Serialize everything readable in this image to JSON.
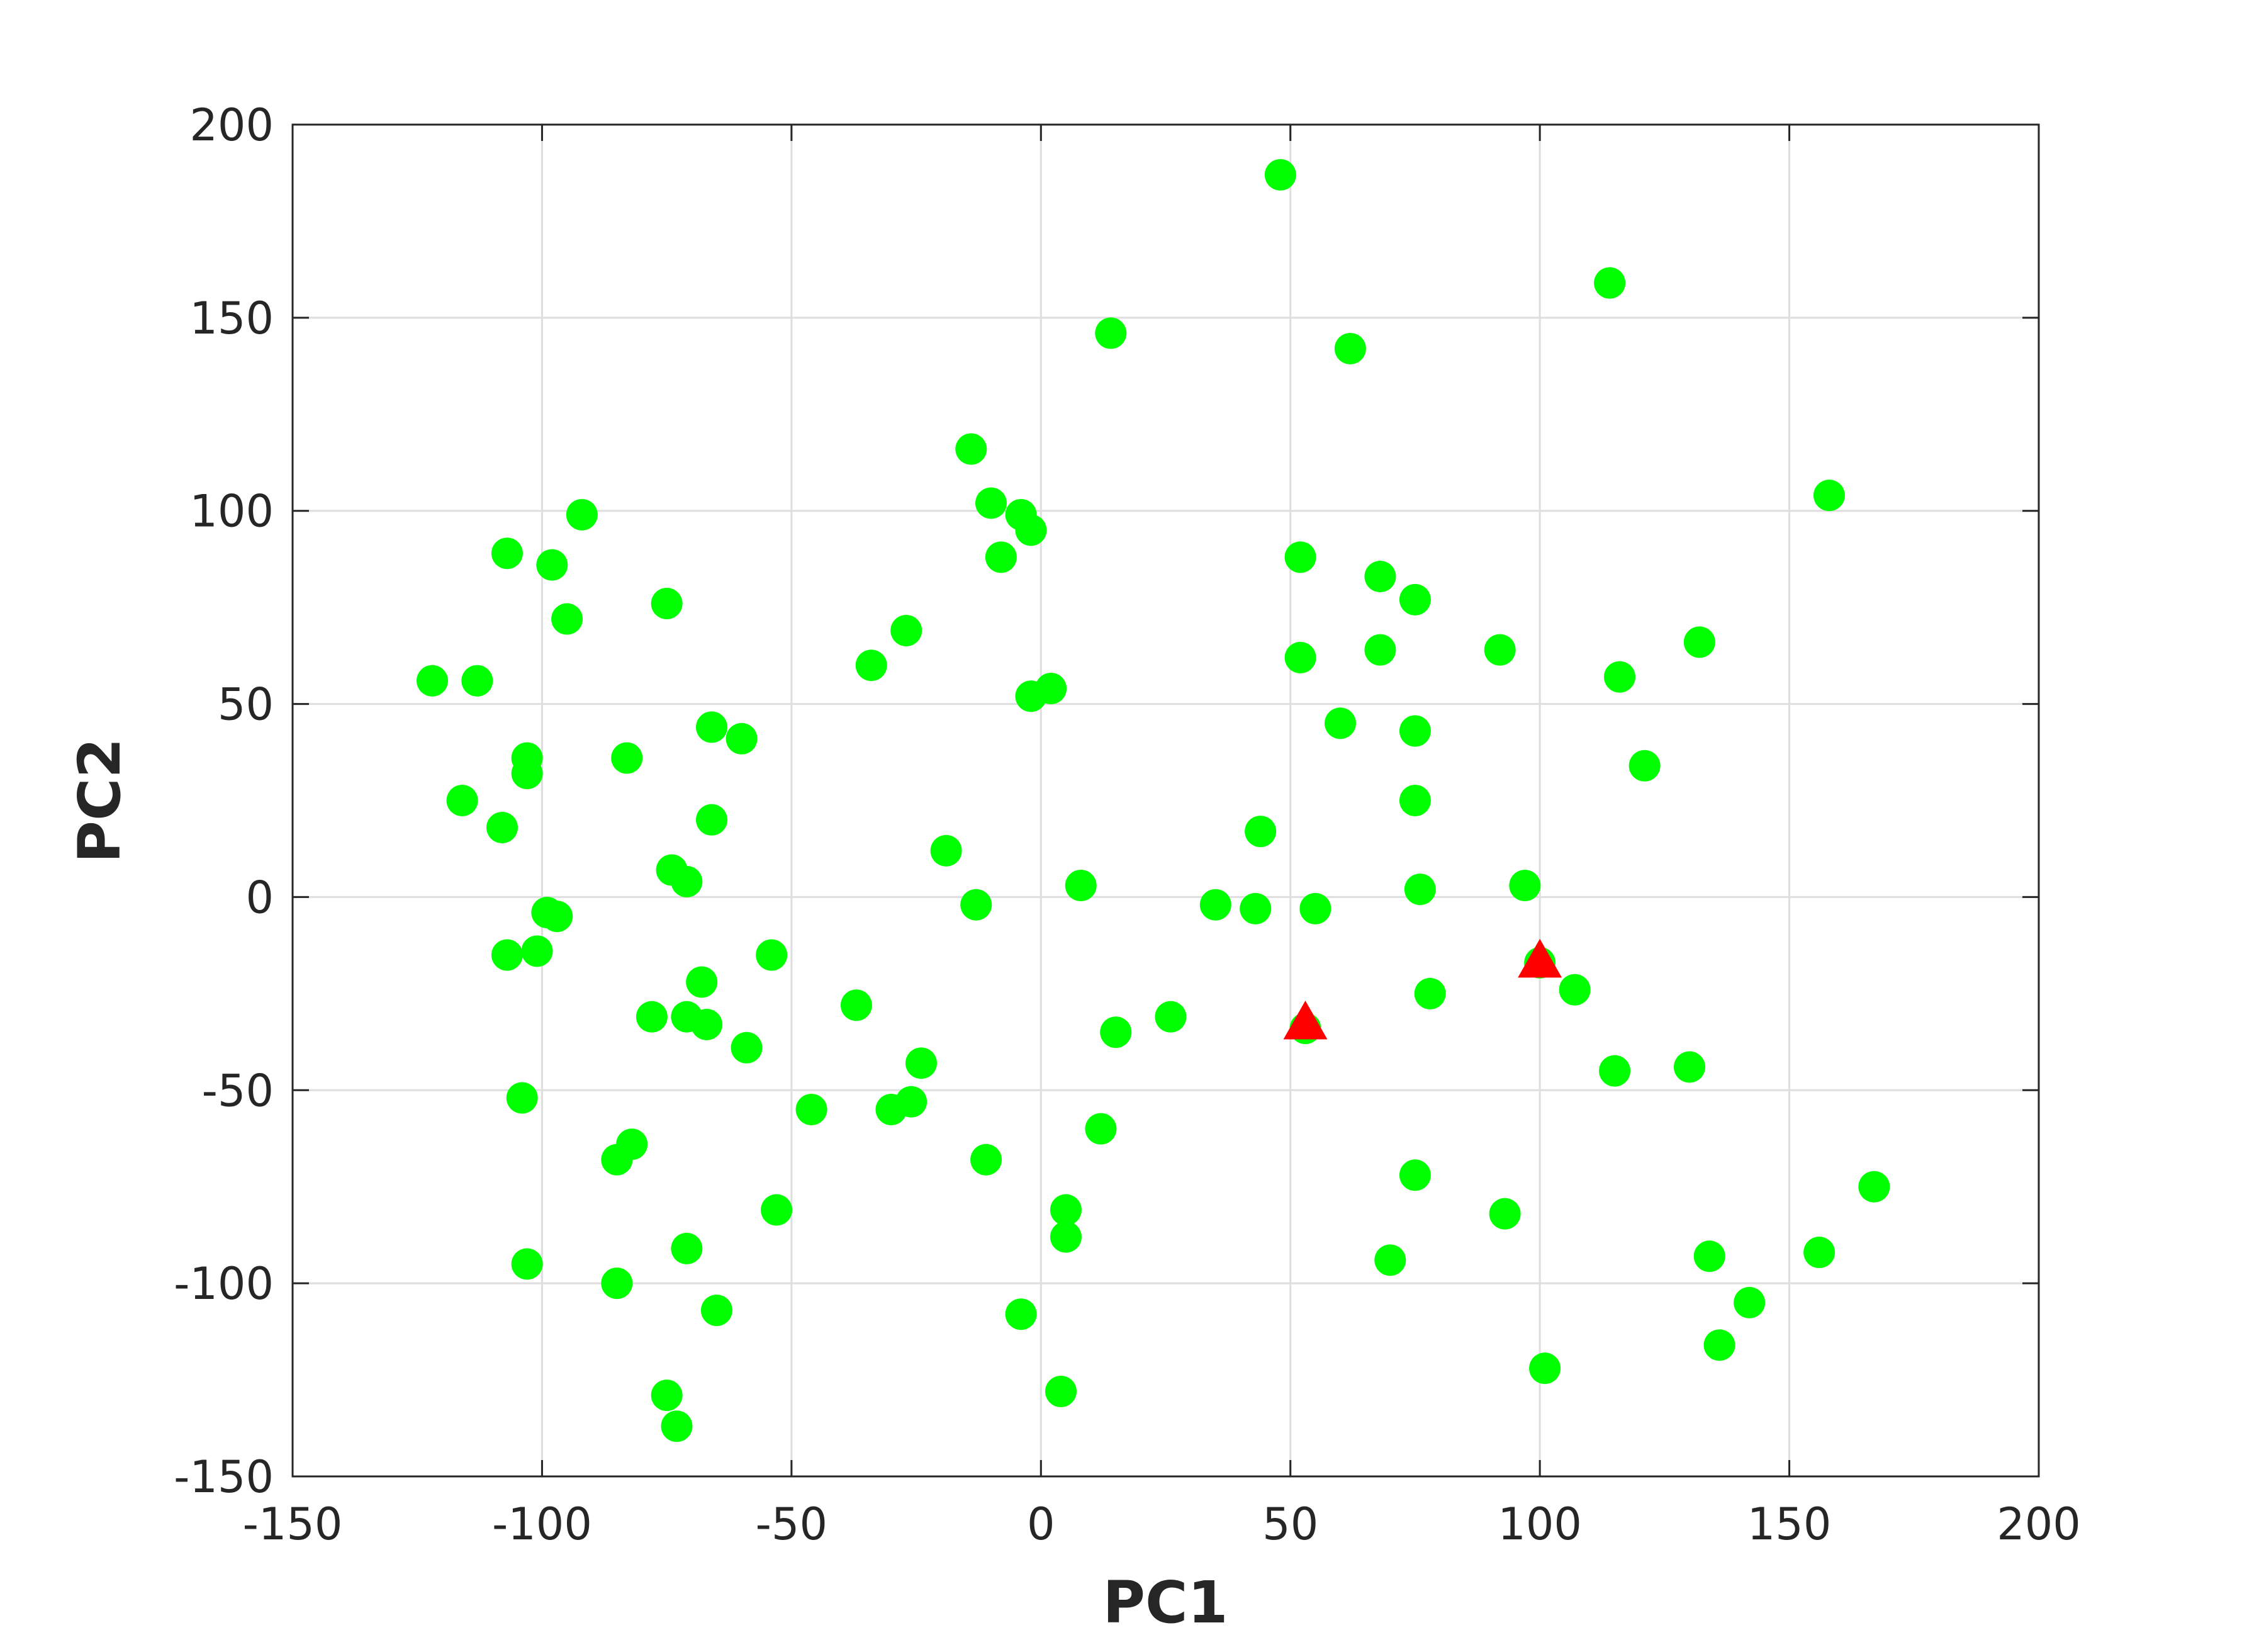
{
  "chart_data": {
    "type": "scatter",
    "title": "",
    "xlabel": "PC1",
    "ylabel": "PC2",
    "xlim": [
      -150,
      200
    ],
    "ylim": [
      -150,
      200
    ],
    "xticks": [
      -150,
      -100,
      -50,
      0,
      50,
      100,
      150,
      200
    ],
    "yticks": [
      -150,
      -100,
      -50,
      0,
      50,
      100,
      150,
      200
    ],
    "xtick_labels": [
      "-150",
      "-100",
      "-50",
      "0",
      "50",
      "100",
      "150",
      "200"
    ],
    "ytick_labels": [
      "-150",
      "-100",
      "-50",
      "0",
      "50",
      "100",
      "150",
      "200"
    ],
    "grid": true,
    "colors": {
      "circles": "#00ff00",
      "triangles": "#ff0000",
      "grid": "#dedede",
      "axes": "#262626"
    },
    "series": [
      {
        "marker": "circle",
        "color": "#00ff00",
        "points": [
          [
            48,
            187
          ],
          [
            114,
            159
          ],
          [
            14,
            146
          ],
          [
            62,
            142
          ],
          [
            158,
            104
          ],
          [
            -14,
            116
          ],
          [
            -10,
            102
          ],
          [
            -4,
            99
          ],
          [
            -2,
            95
          ],
          [
            -8,
            88
          ],
          [
            -107,
            89
          ],
          [
            -98,
            86
          ],
          [
            -92,
            99
          ],
          [
            -95,
            72
          ],
          [
            -75,
            76
          ],
          [
            52,
            88
          ],
          [
            68,
            83
          ],
          [
            75,
            77
          ],
          [
            132,
            66
          ],
          [
            92,
            64
          ],
          [
            68,
            64
          ],
          [
            52,
            62
          ],
          [
            116,
            57
          ],
          [
            -122,
            56
          ],
          [
            -113,
            56
          ],
          [
            -27,
            69
          ],
          [
            -34,
            60
          ],
          [
            -2,
            52
          ],
          [
            2,
            54
          ],
          [
            60,
            45
          ],
          [
            75,
            43
          ],
          [
            121,
            34
          ],
          [
            -66,
            44
          ],
          [
            -60,
            41
          ],
          [
            -83,
            36
          ],
          [
            -103,
            36
          ],
          [
            -103,
            32
          ],
          [
            -116,
            25
          ],
          [
            -108,
            18
          ],
          [
            -66,
            20
          ],
          [
            75,
            25
          ],
          [
            44,
            17
          ],
          [
            -19,
            12
          ],
          [
            -74,
            7
          ],
          [
            -71,
            4
          ],
          [
            8,
            3
          ],
          [
            76,
            2
          ],
          [
            97,
            3
          ],
          [
            -13,
            -2
          ],
          [
            35,
            -2
          ],
          [
            43,
            -3
          ],
          [
            55,
            -3
          ],
          [
            -99,
            -4
          ],
          [
            -97,
            -5
          ],
          [
            -107,
            -15
          ],
          [
            -101,
            -14
          ],
          [
            -54,
            -15
          ],
          [
            -68,
            -22
          ],
          [
            -78,
            -31
          ],
          [
            -71,
            -31
          ],
          [
            -67,
            -33
          ],
          [
            -59,
            -39
          ],
          [
            -37,
            -28
          ],
          [
            78,
            -25
          ],
          [
            100,
            -17
          ],
          [
            107,
            -24
          ],
          [
            53,
            -34
          ],
          [
            26,
            -31
          ],
          [
            15,
            -35
          ],
          [
            115,
            -45
          ],
          [
            130,
            -44
          ],
          [
            -24,
            -43
          ],
          [
            -26,
            -53
          ],
          [
            -30,
            -55
          ],
          [
            -46,
            -55
          ],
          [
            -104,
            -52
          ],
          [
            12,
            -60
          ],
          [
            -82,
            -64
          ],
          [
            -85,
            -68
          ],
          [
            -11,
            -68
          ],
          [
            75,
            -72
          ],
          [
            167,
            -75
          ],
          [
            5,
            -81
          ],
          [
            5,
            -88
          ],
          [
            -53,
            -81
          ],
          [
            -71,
            -91
          ],
          [
            -103,
            -95
          ],
          [
            70,
            -94
          ],
          [
            93,
            -82
          ],
          [
            134,
            -93
          ],
          [
            156,
            -92
          ],
          [
            -85,
            -100
          ],
          [
            -65,
            -107
          ],
          [
            -4,
            -108
          ],
          [
            142,
            -105
          ],
          [
            136,
            -116
          ],
          [
            101,
            -122
          ],
          [
            4,
            -128
          ],
          [
            -75,
            -129
          ],
          [
            -73,
            -137
          ]
        ]
      },
      {
        "marker": "triangle",
        "color": "#ff0000",
        "points": [
          [
            100,
            -17
          ],
          [
            53,
            -33
          ]
        ]
      }
    ]
  }
}
